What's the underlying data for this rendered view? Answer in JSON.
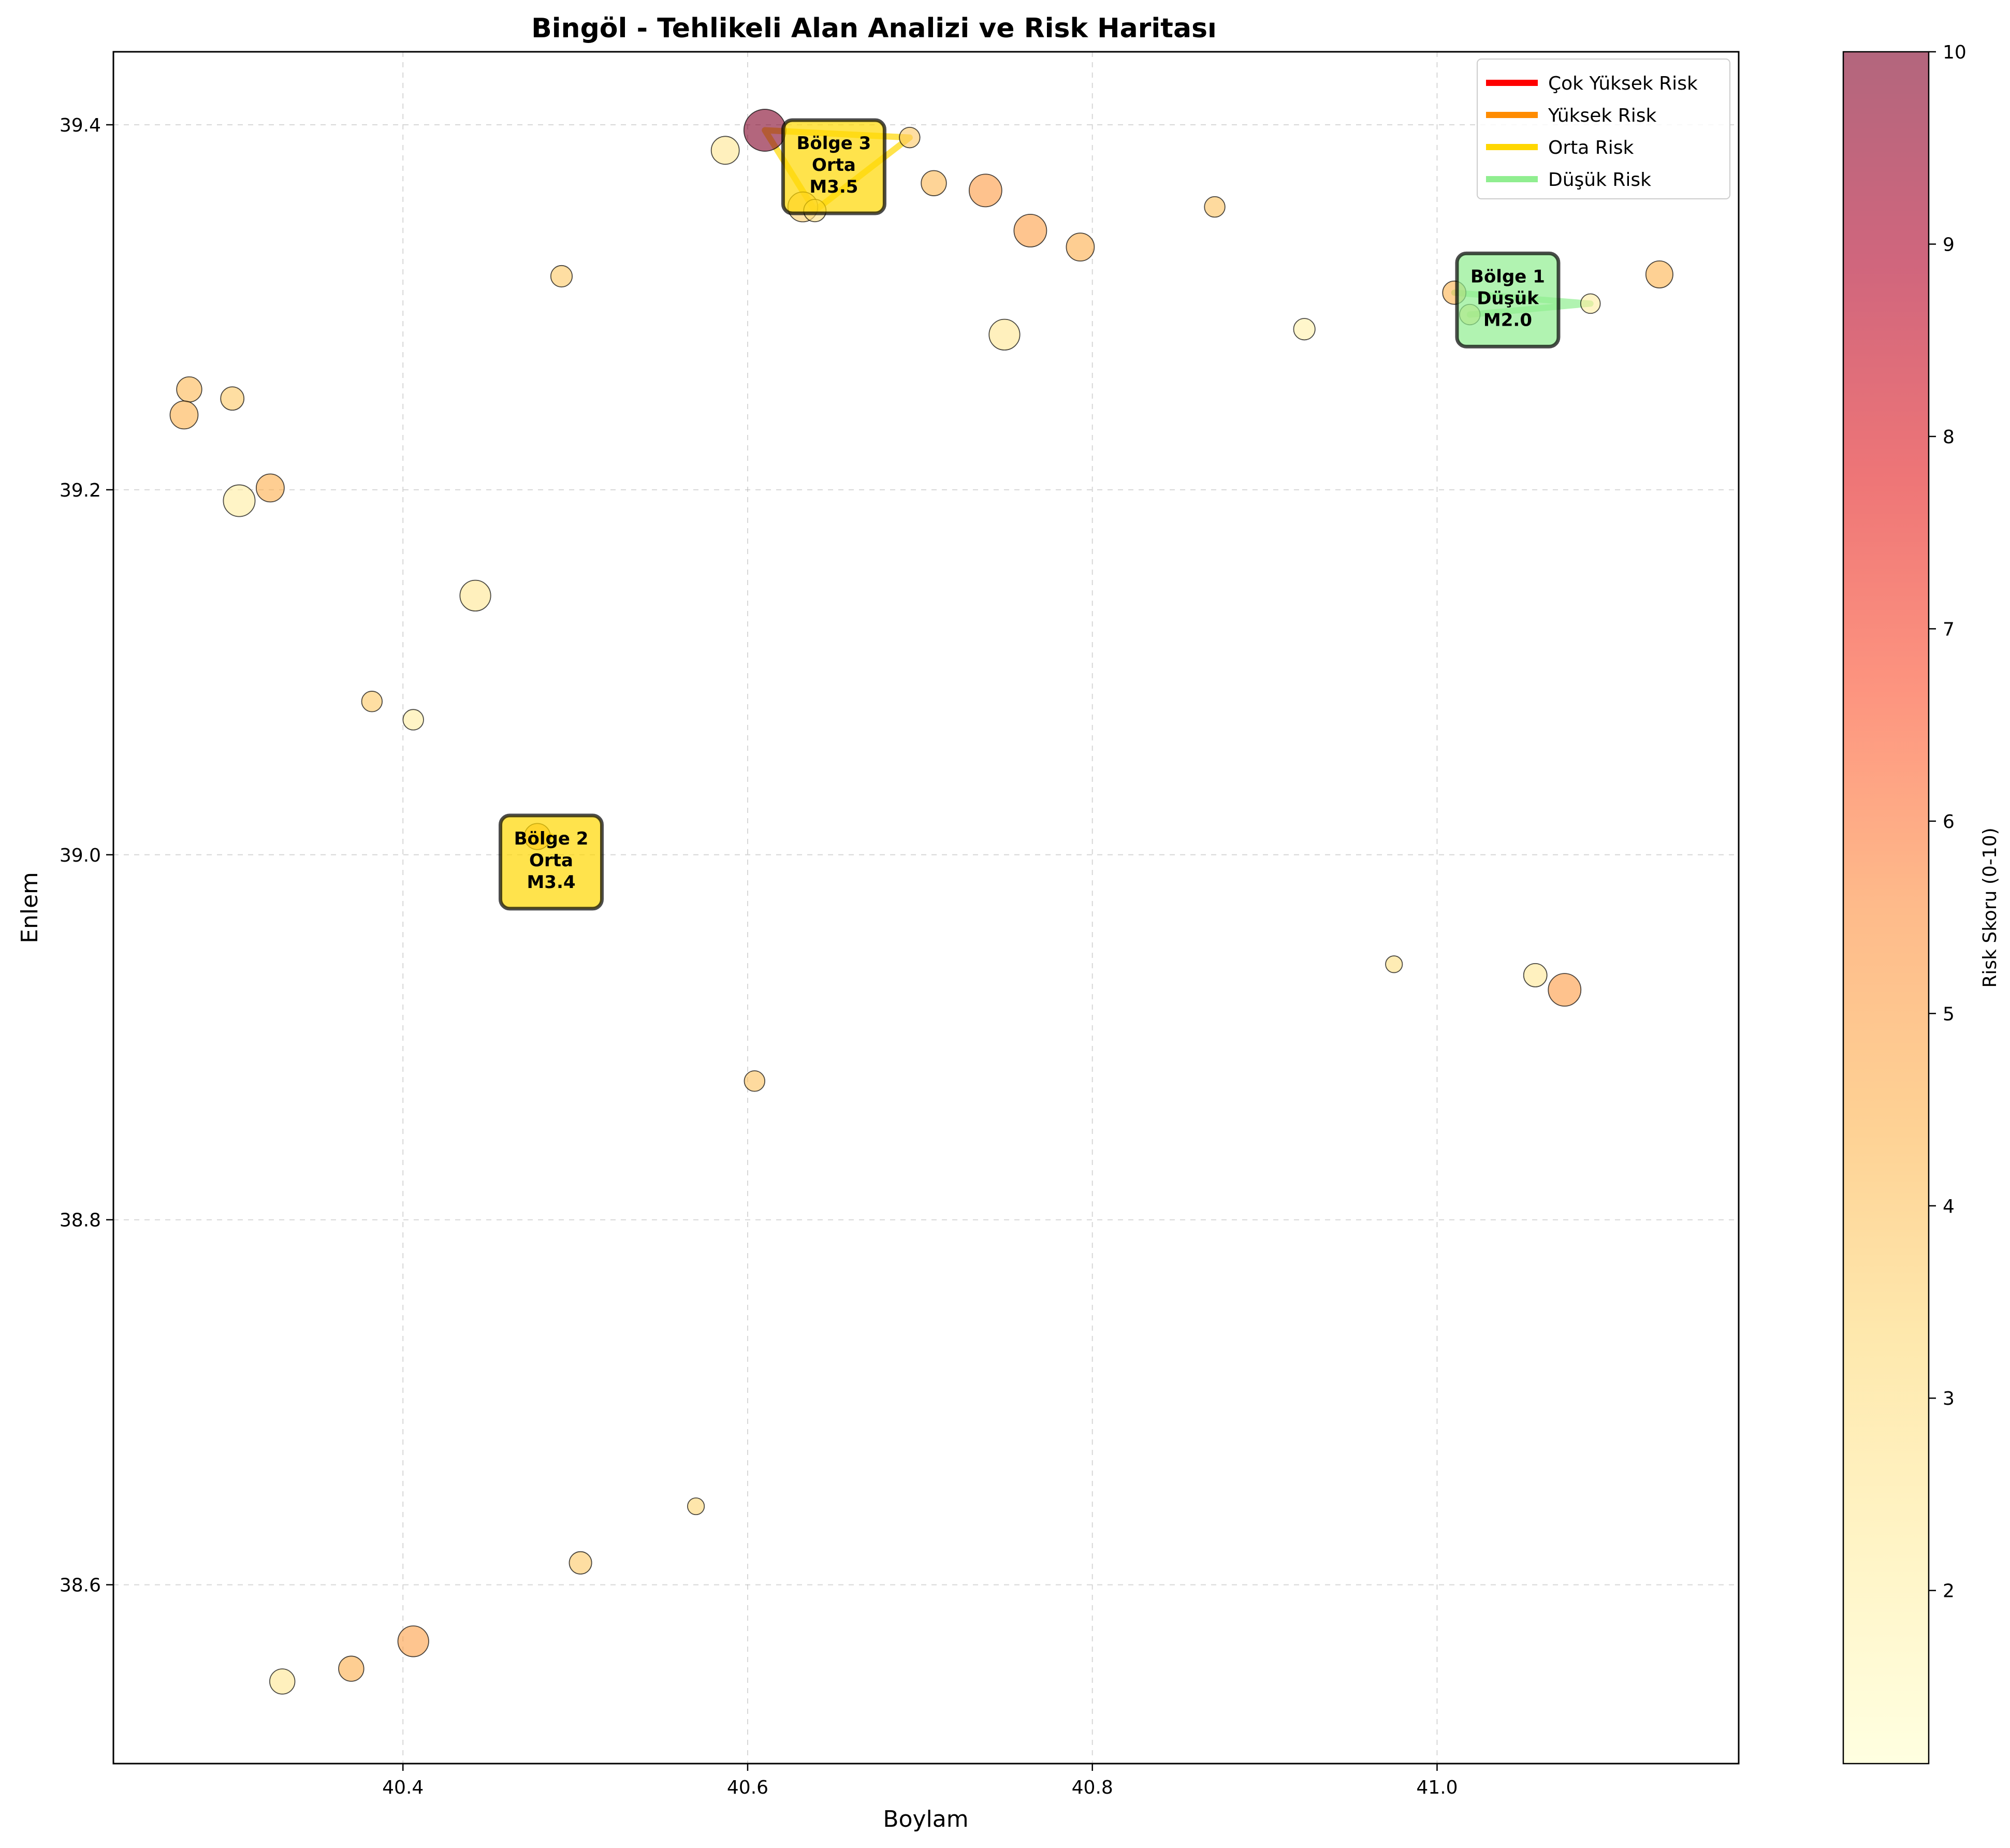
{
  "chart_data": {
    "type": "scatter",
    "title": "Bingöl - Tehlikeli Alan Analizi ve Risk Haritası",
    "xlabel": "Boylam",
    "ylabel": "Enlem",
    "xlim": [
      40.232,
      41.175
    ],
    "ylim": [
      38.502,
      39.44
    ],
    "xticks": [
      "40.4",
      "40.6",
      "40.8",
      "41.0"
    ],
    "yticks": [
      "38.6",
      "38.8",
      "39.0",
      "39.2",
      "39.4"
    ],
    "grid": true,
    "colorbar": {
      "label": "Risk Skoru (0-10)",
      "range": [
        1.1,
        10
      ],
      "ticks": [
        "2",
        "3",
        "4",
        "5",
        "6",
        "7",
        "8",
        "9",
        "10"
      ],
      "colormap": [
        "#ffffcc",
        "#ffeda0",
        "#fed976",
        "#feb24c",
        "#fd8d3c",
        "#fc4e2a",
        "#e31a1c",
        "#b10026",
        "#800026"
      ]
    },
    "legend": {
      "position": "top-right",
      "entries": [
        {
          "label": "Çok Yüksek Risk",
          "color": "#ff0000"
        },
        {
          "label": "Yüksek Risk",
          "color": "#ff8c00"
        },
        {
          "label": "Orta Risk",
          "color": "#ffd700"
        },
        {
          "label": "Düşük Risk",
          "color": "#90ee90"
        }
      ]
    },
    "points": [
      {
        "lon": 40.61,
        "lat": 39.397,
        "risk": 10.0,
        "size": 3.5
      },
      {
        "lon": 40.587,
        "lat": 39.386,
        "risk": 2.6,
        "size": 2.0
      },
      {
        "lon": 40.694,
        "lat": 39.393,
        "risk": 3.8,
        "size": 1.2
      },
      {
        "lon": 40.708,
        "lat": 39.368,
        "risk": 4.3,
        "size": 1.7
      },
      {
        "lon": 40.738,
        "lat": 39.364,
        "risk": 5.2,
        "size": 2.5
      },
      {
        "lon": 40.764,
        "lat": 39.342,
        "risk": 5.0,
        "size": 2.5
      },
      {
        "lon": 40.793,
        "lat": 39.333,
        "risk": 4.6,
        "size": 2.0
      },
      {
        "lon": 40.871,
        "lat": 39.355,
        "risk": 4.0,
        "size": 1.2
      },
      {
        "lon": 40.632,
        "lat": 39.355,
        "risk": 3.6,
        "size": 2.2
      },
      {
        "lon": 40.639,
        "lat": 39.353,
        "risk": 3.0,
        "size": 1.4
      },
      {
        "lon": 40.492,
        "lat": 39.317,
        "risk": 3.8,
        "size": 1.3
      },
      {
        "lon": 40.749,
        "lat": 39.285,
        "risk": 2.6,
        "size": 2.3
      },
      {
        "lon": 40.923,
        "lat": 39.288,
        "risk": 2.0,
        "size": 1.3
      },
      {
        "lon": 41.01,
        "lat": 39.308,
        "risk": 4.4,
        "size": 1.5
      },
      {
        "lon": 41.019,
        "lat": 39.296,
        "risk": 3.4,
        "size": 1.2
      },
      {
        "lon": 41.089,
        "lat": 39.302,
        "risk": 2.2,
        "size": 1.1
      },
      {
        "lon": 41.129,
        "lat": 39.318,
        "risk": 4.4,
        "size": 1.9
      },
      {
        "lon": 40.276,
        "lat": 39.255,
        "risk": 4.3,
        "size": 1.7
      },
      {
        "lon": 40.301,
        "lat": 39.25,
        "risk": 3.8,
        "size": 1.5
      },
      {
        "lon": 40.273,
        "lat": 39.241,
        "risk": 4.5,
        "size": 2.0
      },
      {
        "lon": 40.323,
        "lat": 39.201,
        "risk": 4.6,
        "size": 2.0
      },
      {
        "lon": 40.305,
        "lat": 39.194,
        "risk": 2.2,
        "size": 2.4
      },
      {
        "lon": 40.442,
        "lat": 39.142,
        "risk": 2.6,
        "size": 2.3
      },
      {
        "lon": 40.382,
        "lat": 39.084,
        "risk": 3.8,
        "size": 1.2
      },
      {
        "lon": 40.406,
        "lat": 39.074,
        "risk": 2.2,
        "size": 1.2
      },
      {
        "lon": 40.478,
        "lat": 39.01,
        "risk": 4.4,
        "size": 1.8
      },
      {
        "lon": 40.975,
        "lat": 38.94,
        "risk": 3.0,
        "size": 0.8
      },
      {
        "lon": 41.057,
        "lat": 38.934,
        "risk": 2.5,
        "size": 1.5
      },
      {
        "lon": 41.074,
        "lat": 38.926,
        "risk": 5.2,
        "size": 2.5
      },
      {
        "lon": 40.604,
        "lat": 38.876,
        "risk": 4.0,
        "size": 1.2
      },
      {
        "lon": 40.57,
        "lat": 38.643,
        "risk": 3.4,
        "size": 0.8
      },
      {
        "lon": 40.503,
        "lat": 38.612,
        "risk": 3.8,
        "size": 1.4
      },
      {
        "lon": 40.406,
        "lat": 38.569,
        "risk": 5.0,
        "size": 2.3
      },
      {
        "lon": 40.37,
        "lat": 38.554,
        "risk": 4.6,
        "size": 1.7
      },
      {
        "lon": 40.33,
        "lat": 38.547,
        "risk": 2.6,
        "size": 1.7
      }
    ],
    "zones": [
      {
        "label_line1": "Bölge 3",
        "label_line2": "Orta",
        "label_line3": "M3.5",
        "color": "#ffd700",
        "label_lon": 40.65,
        "label_lat": 39.377,
        "path": [
          [
            40.61,
            39.397
          ],
          [
            40.694,
            39.393
          ],
          [
            40.639,
            39.353
          ],
          [
            40.61,
            39.397
          ]
        ]
      },
      {
        "label_line1": "Bölge 2",
        "label_line2": "Orta",
        "label_line3": "M3.4",
        "color": "#ffd700",
        "label_lon": 40.486,
        "label_lat": 38.996,
        "path": [
          [
            40.476,
            39.01
          ],
          [
            40.486,
            39.01
          ]
        ]
      },
      {
        "label_line1": "Bölge 1",
        "label_line2": "Düşük",
        "label_line3": "M2.0",
        "color": "#90ee90",
        "label_lon": 41.041,
        "label_lat": 39.304,
        "path": [
          [
            41.019,
            39.296
          ],
          [
            41.089,
            39.302
          ],
          [
            41.01,
            39.308
          ]
        ]
      }
    ]
  }
}
